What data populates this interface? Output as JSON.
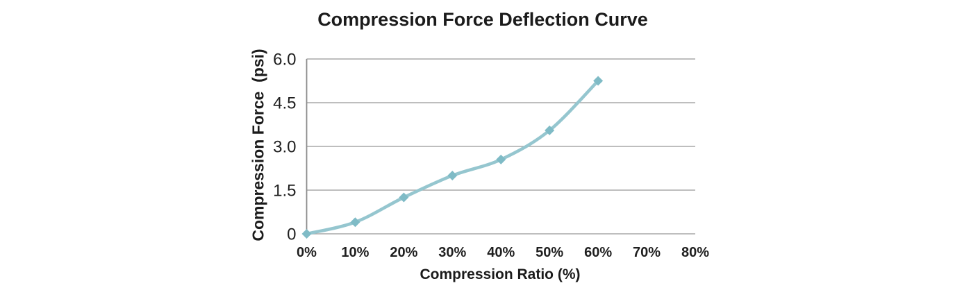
{
  "chart_data": {
    "type": "line",
    "title": "Compression Force Deflection Curve",
    "xlabel": "Compression Ratio (%)",
    "ylabel": "Compression Force  (psi)",
    "xlim": [
      0,
      80
    ],
    "ylim": [
      0,
      6
    ],
    "x_tick_labels": [
      "0%",
      "10%",
      "20%",
      "30%",
      "40%",
      "50%",
      "60%",
      "70%",
      "80%"
    ],
    "x_tick_values": [
      0,
      10,
      20,
      30,
      40,
      50,
      60,
      70,
      80
    ],
    "y_tick_labels": [
      "0",
      "1.5",
      "3.0",
      "4.5",
      "6.0"
    ],
    "y_tick_values": [
      0,
      1.5,
      3.0,
      4.5,
      6.0
    ],
    "grid": "horizontal-only",
    "legend": "none",
    "series": [
      {
        "name": "Compression Force",
        "x": [
          0,
          10,
          20,
          30,
          40,
          50,
          60
        ],
        "values": [
          0,
          0.4,
          1.25,
          2.0,
          2.55,
          3.55,
          5.25
        ],
        "smooth": true,
        "marker": "diamond",
        "line_color": "#95c6cf",
        "marker_color": "#7fbbc6"
      }
    ],
    "colors": {
      "background": "#ffffff",
      "gridline": "#a8a8a8",
      "axis_line": "#8c8c8c",
      "text": "#1b1b1b"
    }
  }
}
